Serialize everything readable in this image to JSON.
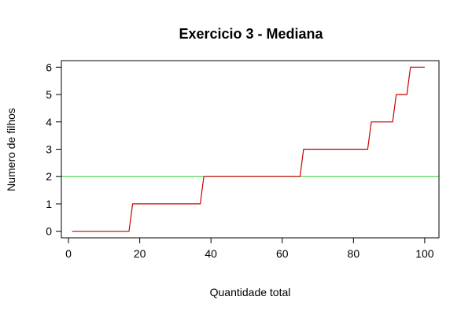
{
  "chart_data": {
    "type": "line",
    "title": "Exercicio 3 - Mediana",
    "xlabel": "Quantidade total",
    "ylabel": "Numero de filhos",
    "xlim": [
      -2,
      104
    ],
    "ylim": [
      -0.24,
      6.24
    ],
    "x_ticks": [
      0,
      20,
      40,
      60,
      80,
      100
    ],
    "y_ticks": [
      0,
      1,
      2,
      3,
      4,
      5,
      6
    ],
    "grid": false,
    "series": [
      {
        "color": "#cc0000",
        "style": "step",
        "x": [
          1,
          17,
          18,
          37,
          38,
          65,
          66,
          84,
          85,
          91,
          92,
          95,
          96,
          100
        ],
        "y": [
          0,
          0,
          1,
          1,
          2,
          2,
          3,
          3,
          4,
          4,
          5,
          5,
          6,
          6
        ]
      }
    ],
    "reference_lines": [
      {
        "orientation": "horizontal",
        "y": 2,
        "color": "#33cc33"
      }
    ]
  }
}
